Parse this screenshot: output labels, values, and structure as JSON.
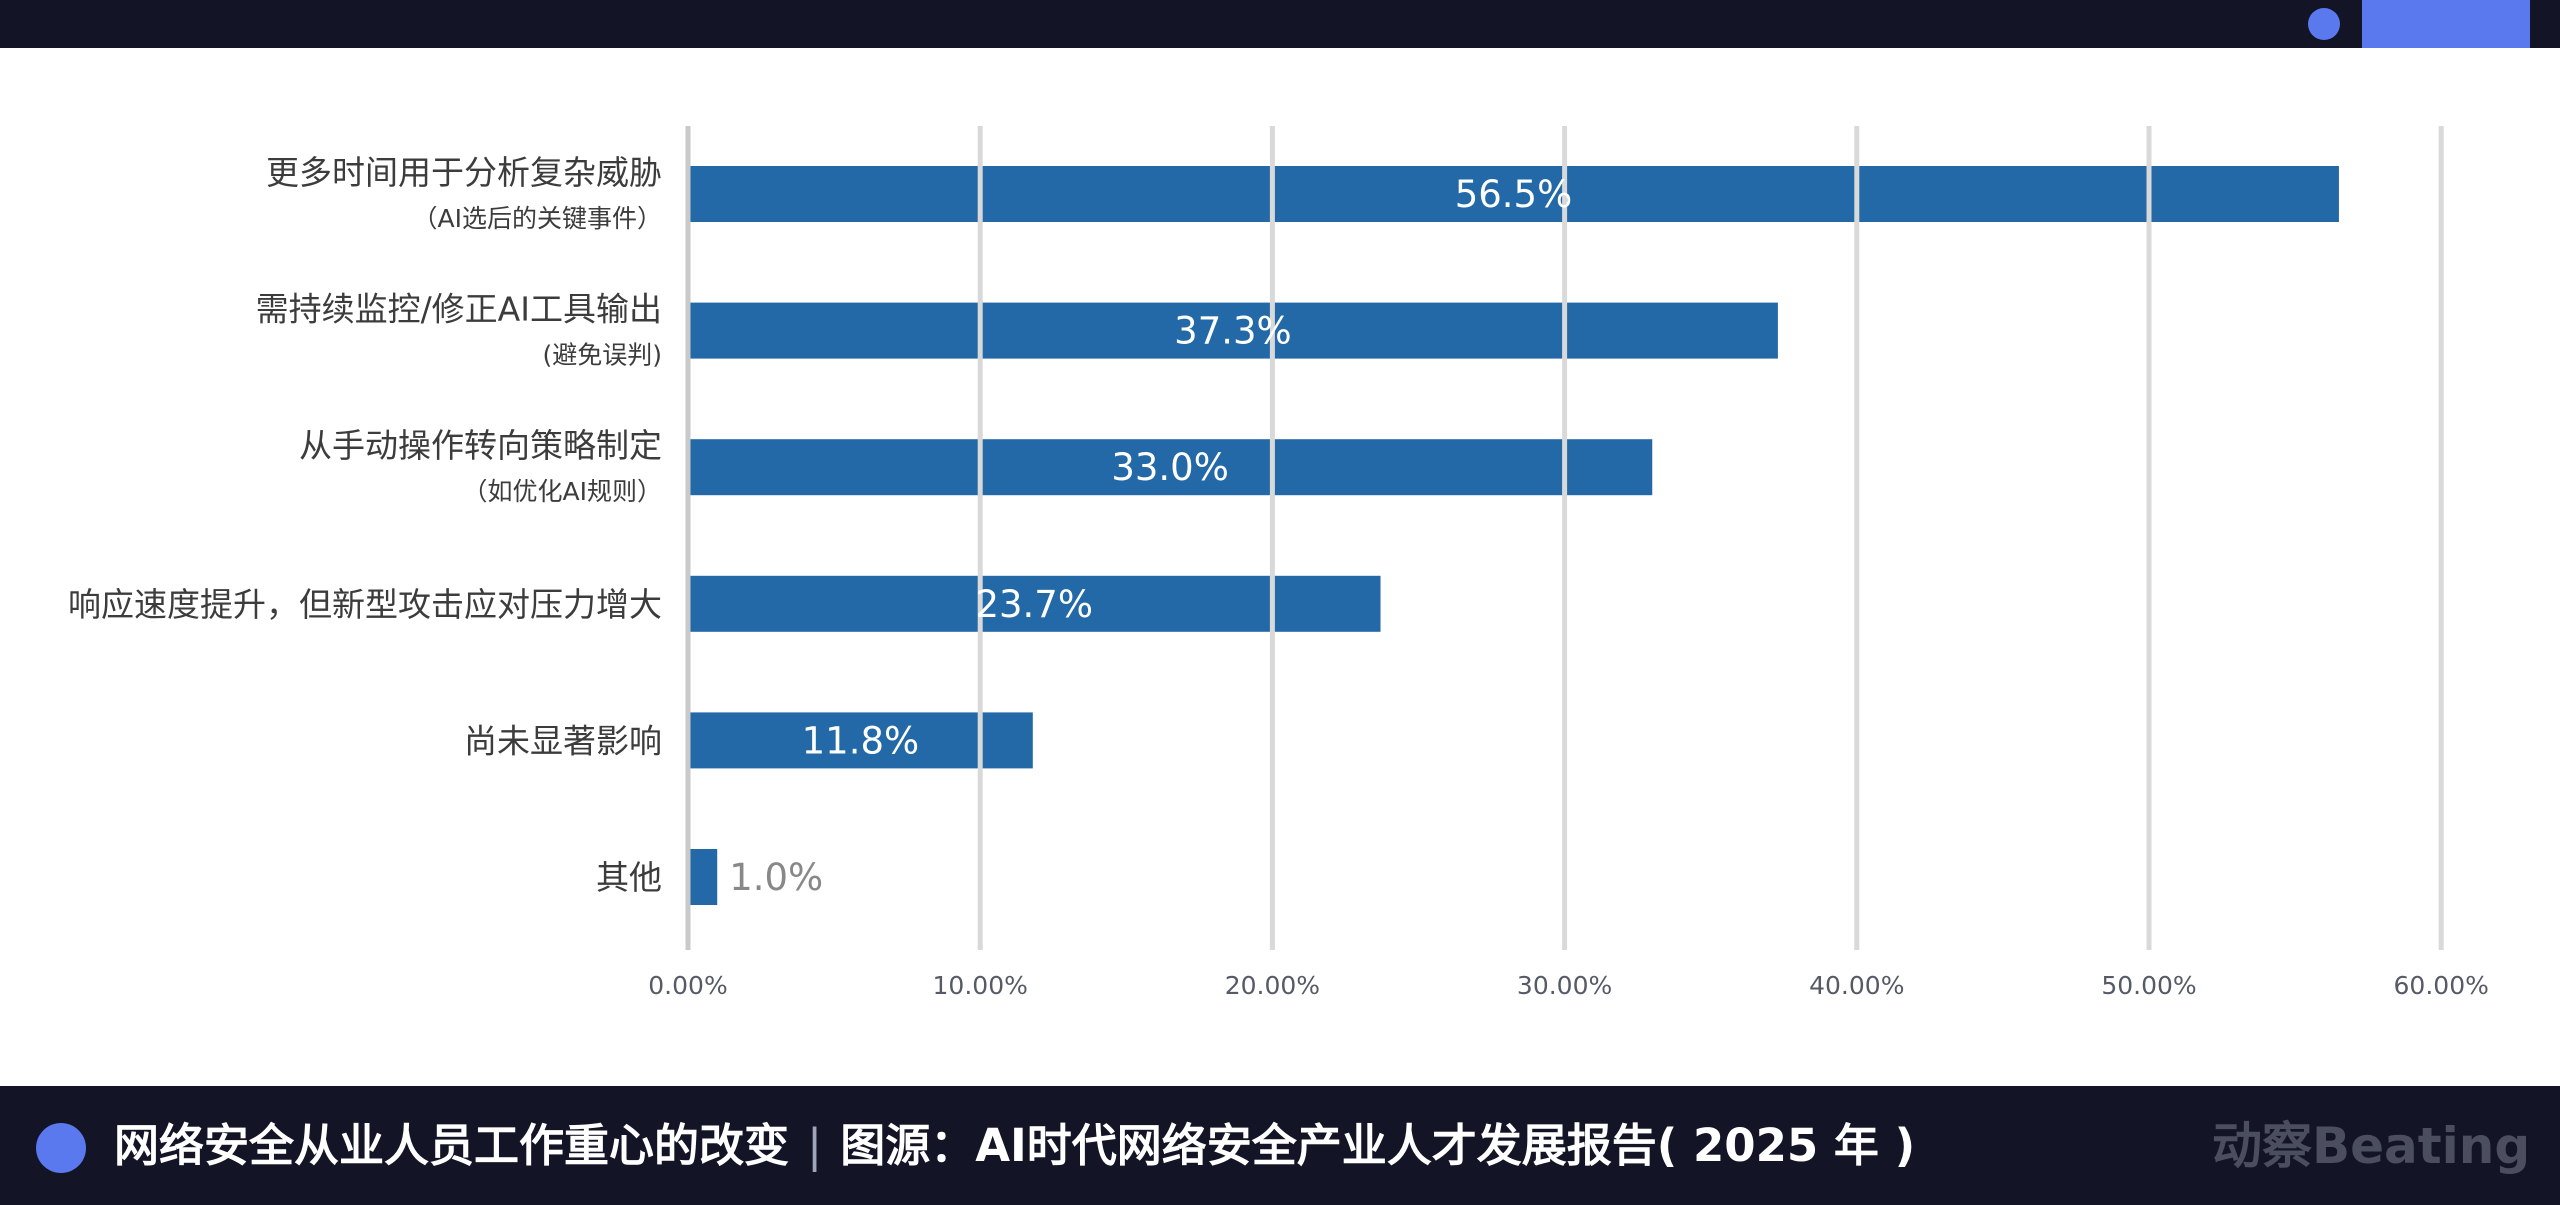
{
  "brand_colors": {
    "bar": "#2369a8",
    "accent": "#5b79ee",
    "dark": "#131526"
  },
  "chart_data": {
    "type": "bar",
    "orientation": "horizontal",
    "title": "",
    "xlabel": "",
    "ylabel": "",
    "xlim": [
      0,
      60
    ],
    "x_ticks": [
      "0.00%",
      "10.00%",
      "20.00%",
      "30.00%",
      "40.00%",
      "50.00%",
      "60.00%"
    ],
    "grid": true,
    "categories": [
      {
        "main": "更多时间用于分析复杂威胁",
        "sub": "（AI选后的关键事件）"
      },
      {
        "main": "需持续监控/修正AI工具输出",
        "sub": "(避免误判)"
      },
      {
        "main": "从手动操作转向策略制定",
        "sub": "（如优化AI规则）"
      },
      {
        "main": "响应速度提升，但新型攻击应对压力增大",
        "sub": ""
      },
      {
        "main": "尚未显著影响",
        "sub": ""
      },
      {
        "main": "其他",
        "sub": ""
      }
    ],
    "values": [
      56.5,
      37.3,
      33.0,
      23.7,
      11.8,
      1.0
    ],
    "labels": [
      "56.5%",
      "37.3%",
      "33.0%",
      "23.7%",
      "11.8%",
      "1.0%"
    ]
  },
  "footer": {
    "caption_title": "网络安全从业人员工作重心的改变",
    "separator": "|",
    "caption_source": "图源：AI时代网络安全产业人才发展报告( 2025 年 )",
    "brand": "动察Beating"
  }
}
